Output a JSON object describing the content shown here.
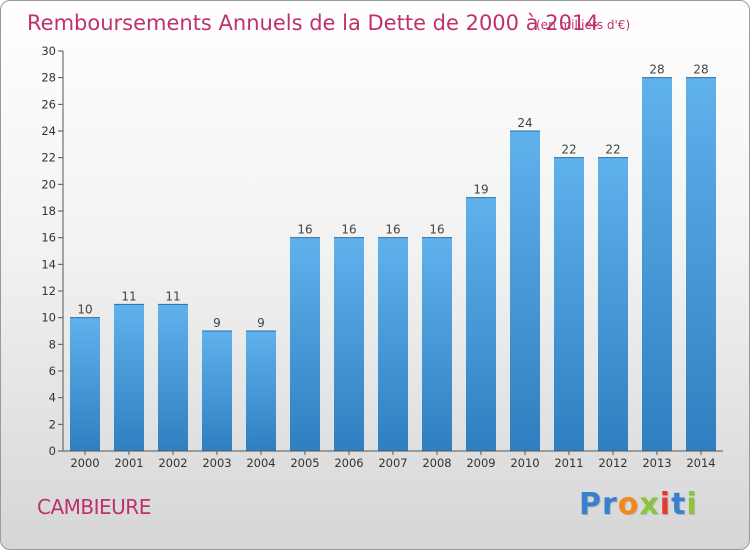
{
  "chart_data": {
    "type": "bar",
    "title": "Remboursements Annuels de la Dette de 2000 à 2014",
    "unit_note": "(en milliers d'€)",
    "categories": [
      "2000",
      "2001",
      "2002",
      "2003",
      "2004",
      "2005",
      "2006",
      "2007",
      "2008",
      "2009",
      "2010",
      "2011",
      "2012",
      "2013",
      "2014"
    ],
    "values": [
      10,
      11,
      11,
      9,
      9,
      16,
      16,
      16,
      16,
      19,
      24,
      22,
      22,
      28,
      28
    ],
    "ylim": [
      0,
      30
    ],
    "ytick_step": 2,
    "grid": false,
    "xlabel": "",
    "ylabel": ""
  },
  "commune": "CAMBIEURE",
  "logo": {
    "letters": [
      "P",
      "r",
      "o",
      "x",
      "i",
      "t",
      "i"
    ],
    "colors": [
      "#3a7fd0",
      "#3a7fd0",
      "#f08a1c",
      "#8bc53f",
      "#e23b2e",
      "#3a7fd0",
      "#8bc53f"
    ]
  },
  "colors": {
    "bar_top": "#5fb2ec",
    "bar_bottom": "#2e7fc1",
    "title": "#c0306b"
  }
}
